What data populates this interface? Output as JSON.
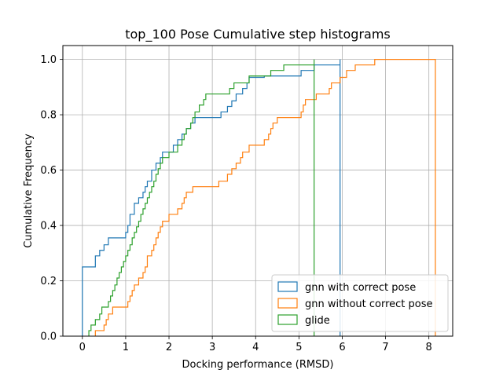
{
  "chart_data": {
    "type": "cumulative step histogram",
    "title": "top_100 Pose Cumulative step histograms",
    "xlabel": "Docking performance (RMSD)",
    "ylabel": "Cumulative Frequency",
    "xlim": [
      -0.45,
      8.55
    ],
    "ylim": [
      0,
      1.05
    ],
    "xticks": [
      0,
      1,
      2,
      3,
      4,
      5,
      6,
      7,
      8
    ],
    "yticks": [
      0.0,
      0.2,
      0.4,
      0.6,
      0.8,
      1.0
    ],
    "grid": true,
    "legend_position": "lower right",
    "series": [
      {
        "name": "gnn with correct pose",
        "color": "#1f77b4",
        "steps": [
          [
            0.0,
            0.0
          ],
          [
            0.0,
            0.25
          ],
          [
            0.3,
            0.25
          ],
          [
            0.3,
            0.29
          ],
          [
            0.4,
            0.29
          ],
          [
            0.4,
            0.31
          ],
          [
            0.5,
            0.31
          ],
          [
            0.5,
            0.33
          ],
          [
            0.6,
            0.33
          ],
          [
            0.6,
            0.355
          ],
          [
            1.0,
            0.355
          ],
          [
            1.0,
            0.375
          ],
          [
            1.05,
            0.375
          ],
          [
            1.05,
            0.4
          ],
          [
            1.1,
            0.4
          ],
          [
            1.1,
            0.44
          ],
          [
            1.2,
            0.44
          ],
          [
            1.2,
            0.48
          ],
          [
            1.3,
            0.48
          ],
          [
            1.3,
            0.5
          ],
          [
            1.4,
            0.5
          ],
          [
            1.4,
            0.52
          ],
          [
            1.45,
            0.52
          ],
          [
            1.45,
            0.54
          ],
          [
            1.5,
            0.54
          ],
          [
            1.5,
            0.56
          ],
          [
            1.6,
            0.56
          ],
          [
            1.6,
            0.6
          ],
          [
            1.7,
            0.6
          ],
          [
            1.7,
            0.625
          ],
          [
            1.8,
            0.625
          ],
          [
            1.8,
            0.645
          ],
          [
            1.85,
            0.645
          ],
          [
            1.85,
            0.665
          ],
          [
            2.1,
            0.665
          ],
          [
            2.1,
            0.69
          ],
          [
            2.2,
            0.69
          ],
          [
            2.2,
            0.71
          ],
          [
            2.3,
            0.71
          ],
          [
            2.3,
            0.73
          ],
          [
            2.4,
            0.73
          ],
          [
            2.4,
            0.75
          ],
          [
            2.5,
            0.75
          ],
          [
            2.5,
            0.77
          ],
          [
            2.6,
            0.77
          ],
          [
            2.6,
            0.79
          ],
          [
            3.2,
            0.79
          ],
          [
            3.2,
            0.81
          ],
          [
            3.35,
            0.81
          ],
          [
            3.35,
            0.83
          ],
          [
            3.45,
            0.83
          ],
          [
            3.45,
            0.85
          ],
          [
            3.55,
            0.85
          ],
          [
            3.55,
            0.875
          ],
          [
            3.7,
            0.875
          ],
          [
            3.7,
            0.895
          ],
          [
            3.8,
            0.895
          ],
          [
            3.8,
            0.915
          ],
          [
            3.85,
            0.915
          ],
          [
            3.85,
            0.935
          ],
          [
            4.2,
            0.935
          ],
          [
            4.2,
            0.94
          ],
          [
            5.05,
            0.94
          ],
          [
            5.05,
            0.96
          ],
          [
            5.35,
            0.96
          ],
          [
            5.35,
            0.98
          ],
          [
            5.95,
            0.98
          ],
          [
            5.95,
            1.0
          ],
          [
            5.95,
            0.0
          ]
        ]
      },
      {
        "name": "gnn without correct pose",
        "color": "#ff7f0e",
        "steps": [
          [
            0.3,
            0.0
          ],
          [
            0.3,
            0.02
          ],
          [
            0.5,
            0.02
          ],
          [
            0.5,
            0.04
          ],
          [
            0.55,
            0.04
          ],
          [
            0.55,
            0.06
          ],
          [
            0.6,
            0.06
          ],
          [
            0.6,
            0.08
          ],
          [
            0.7,
            0.08
          ],
          [
            0.7,
            0.105
          ],
          [
            1.05,
            0.105
          ],
          [
            1.05,
            0.125
          ],
          [
            1.1,
            0.125
          ],
          [
            1.1,
            0.145
          ],
          [
            1.15,
            0.145
          ],
          [
            1.15,
            0.165
          ],
          [
            1.2,
            0.165
          ],
          [
            1.2,
            0.185
          ],
          [
            1.3,
            0.185
          ],
          [
            1.3,
            0.21
          ],
          [
            1.4,
            0.21
          ],
          [
            1.4,
            0.23
          ],
          [
            1.45,
            0.23
          ],
          [
            1.45,
            0.25
          ],
          [
            1.5,
            0.25
          ],
          [
            1.5,
            0.29
          ],
          [
            1.6,
            0.29
          ],
          [
            1.6,
            0.31
          ],
          [
            1.65,
            0.31
          ],
          [
            1.65,
            0.33
          ],
          [
            1.7,
            0.33
          ],
          [
            1.7,
            0.355
          ],
          [
            1.75,
            0.355
          ],
          [
            1.75,
            0.375
          ],
          [
            1.8,
            0.375
          ],
          [
            1.8,
            0.395
          ],
          [
            1.85,
            0.395
          ],
          [
            1.85,
            0.415
          ],
          [
            2.0,
            0.415
          ],
          [
            2.0,
            0.44
          ],
          [
            2.2,
            0.44
          ],
          [
            2.2,
            0.46
          ],
          [
            2.3,
            0.46
          ],
          [
            2.3,
            0.48
          ],
          [
            2.35,
            0.48
          ],
          [
            2.35,
            0.5
          ],
          [
            2.4,
            0.5
          ],
          [
            2.4,
            0.52
          ],
          [
            2.55,
            0.52
          ],
          [
            2.55,
            0.54
          ],
          [
            3.15,
            0.54
          ],
          [
            3.15,
            0.56
          ],
          [
            3.35,
            0.56
          ],
          [
            3.35,
            0.585
          ],
          [
            3.45,
            0.585
          ],
          [
            3.45,
            0.605
          ],
          [
            3.55,
            0.605
          ],
          [
            3.55,
            0.625
          ],
          [
            3.65,
            0.625
          ],
          [
            3.65,
            0.645
          ],
          [
            3.7,
            0.645
          ],
          [
            3.7,
            0.665
          ],
          [
            3.85,
            0.665
          ],
          [
            3.85,
            0.69
          ],
          [
            4.2,
            0.69
          ],
          [
            4.2,
            0.71
          ],
          [
            4.3,
            0.71
          ],
          [
            4.3,
            0.73
          ],
          [
            4.35,
            0.73
          ],
          [
            4.35,
            0.75
          ],
          [
            4.4,
            0.75
          ],
          [
            4.4,
            0.77
          ],
          [
            4.5,
            0.77
          ],
          [
            4.5,
            0.79
          ],
          [
            5.05,
            0.79
          ],
          [
            5.05,
            0.81
          ],
          [
            5.1,
            0.81
          ],
          [
            5.1,
            0.835
          ],
          [
            5.15,
            0.835
          ],
          [
            5.15,
            0.855
          ],
          [
            5.4,
            0.855
          ],
          [
            5.4,
            0.875
          ],
          [
            5.7,
            0.875
          ],
          [
            5.7,
            0.895
          ],
          [
            5.75,
            0.895
          ],
          [
            5.75,
            0.915
          ],
          [
            5.95,
            0.915
          ],
          [
            5.95,
            0.935
          ],
          [
            6.1,
            0.935
          ],
          [
            6.1,
            0.96
          ],
          [
            6.3,
            0.96
          ],
          [
            6.3,
            0.98
          ],
          [
            6.75,
            0.98
          ],
          [
            6.75,
            1.0
          ],
          [
            7.2,
            1.0
          ],
          [
            7.2,
            1.0
          ],
          [
            8.15,
            1.0
          ],
          [
            8.15,
            0.0
          ]
        ]
      },
      {
        "name": "glide",
        "color": "#2ca02c",
        "steps": [
          [
            0.15,
            0.0
          ],
          [
            0.15,
            0.02
          ],
          [
            0.2,
            0.02
          ],
          [
            0.2,
            0.04
          ],
          [
            0.3,
            0.04
          ],
          [
            0.3,
            0.06
          ],
          [
            0.4,
            0.06
          ],
          [
            0.4,
            0.08
          ],
          [
            0.45,
            0.08
          ],
          [
            0.45,
            0.105
          ],
          [
            0.6,
            0.105
          ],
          [
            0.6,
            0.125
          ],
          [
            0.65,
            0.125
          ],
          [
            0.65,
            0.145
          ],
          [
            0.7,
            0.145
          ],
          [
            0.7,
            0.165
          ],
          [
            0.75,
            0.165
          ],
          [
            0.75,
            0.185
          ],
          [
            0.8,
            0.185
          ],
          [
            0.8,
            0.21
          ],
          [
            0.85,
            0.21
          ],
          [
            0.85,
            0.23
          ],
          [
            0.9,
            0.23
          ],
          [
            0.9,
            0.25
          ],
          [
            0.95,
            0.25
          ],
          [
            0.95,
            0.27
          ],
          [
            1.0,
            0.27
          ],
          [
            1.0,
            0.29
          ],
          [
            1.05,
            0.29
          ],
          [
            1.05,
            0.31
          ],
          [
            1.1,
            0.31
          ],
          [
            1.1,
            0.33
          ],
          [
            1.15,
            0.33
          ],
          [
            1.15,
            0.355
          ],
          [
            1.2,
            0.355
          ],
          [
            1.2,
            0.375
          ],
          [
            1.25,
            0.375
          ],
          [
            1.25,
            0.395
          ],
          [
            1.3,
            0.395
          ],
          [
            1.3,
            0.415
          ],
          [
            1.35,
            0.415
          ],
          [
            1.35,
            0.44
          ],
          [
            1.4,
            0.44
          ],
          [
            1.4,
            0.46
          ],
          [
            1.45,
            0.46
          ],
          [
            1.45,
            0.48
          ],
          [
            1.5,
            0.48
          ],
          [
            1.5,
            0.5
          ],
          [
            1.55,
            0.5
          ],
          [
            1.55,
            0.52
          ],
          [
            1.6,
            0.52
          ],
          [
            1.6,
            0.54
          ],
          [
            1.65,
            0.54
          ],
          [
            1.65,
            0.56
          ],
          [
            1.7,
            0.56
          ],
          [
            1.7,
            0.585
          ],
          [
            1.75,
            0.585
          ],
          [
            1.75,
            0.605
          ],
          [
            1.8,
            0.605
          ],
          [
            1.8,
            0.625
          ],
          [
            1.85,
            0.625
          ],
          [
            1.85,
            0.645
          ],
          [
            2.0,
            0.645
          ],
          [
            2.0,
            0.665
          ],
          [
            2.2,
            0.665
          ],
          [
            2.2,
            0.69
          ],
          [
            2.3,
            0.69
          ],
          [
            2.3,
            0.71
          ],
          [
            2.35,
            0.71
          ],
          [
            2.35,
            0.73
          ],
          [
            2.4,
            0.73
          ],
          [
            2.4,
            0.75
          ],
          [
            2.5,
            0.75
          ],
          [
            2.5,
            0.77
          ],
          [
            2.55,
            0.77
          ],
          [
            2.55,
            0.79
          ],
          [
            2.6,
            0.79
          ],
          [
            2.6,
            0.81
          ],
          [
            2.7,
            0.81
          ],
          [
            2.7,
            0.835
          ],
          [
            2.8,
            0.835
          ],
          [
            2.8,
            0.855
          ],
          [
            2.85,
            0.855
          ],
          [
            2.85,
            0.875
          ],
          [
            3.4,
            0.875
          ],
          [
            3.4,
            0.895
          ],
          [
            3.5,
            0.895
          ],
          [
            3.5,
            0.915
          ],
          [
            3.85,
            0.915
          ],
          [
            3.85,
            0.94
          ],
          [
            4.35,
            0.94
          ],
          [
            4.35,
            0.96
          ],
          [
            4.65,
            0.96
          ],
          [
            4.65,
            0.98
          ],
          [
            5.35,
            0.98
          ],
          [
            5.35,
            1.0
          ],
          [
            5.35,
            0.0
          ]
        ]
      }
    ]
  }
}
